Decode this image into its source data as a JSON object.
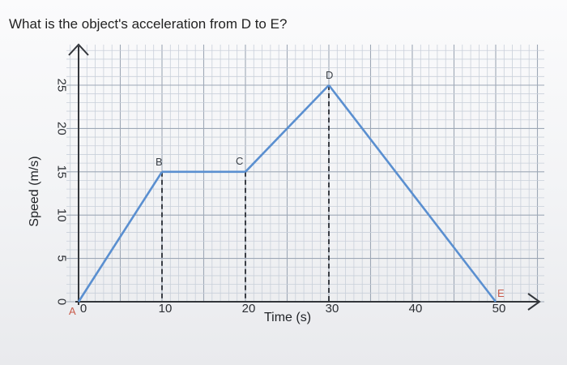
{
  "question": "What is the object's acceleration from D to E?",
  "chart_data": {
    "type": "line",
    "xlabel": "Time (s)",
    "ylabel": "Speed (m/s)",
    "xlim": [
      0,
      50
    ],
    "ylim": [
      0,
      25
    ],
    "x_ticks": [
      "0",
      "10",
      "20",
      "30",
      "40",
      "50"
    ],
    "y_ticks": [
      "0",
      "5",
      "10",
      "15",
      "20",
      "25"
    ],
    "series": [
      {
        "points": [
          {
            "label": "A",
            "x": 0,
            "y": 0
          },
          {
            "label": "B",
            "x": 10,
            "y": 15
          },
          {
            "label": "C",
            "x": 20,
            "y": 15
          },
          {
            "label": "D",
            "x": 30,
            "y": 25
          },
          {
            "label": "E",
            "x": 50,
            "y": 0
          }
        ]
      }
    ],
    "dashed_verticals_at_x": [
      10,
      20,
      30
    ],
    "grid": true,
    "line_color": "#5a8fd0"
  }
}
